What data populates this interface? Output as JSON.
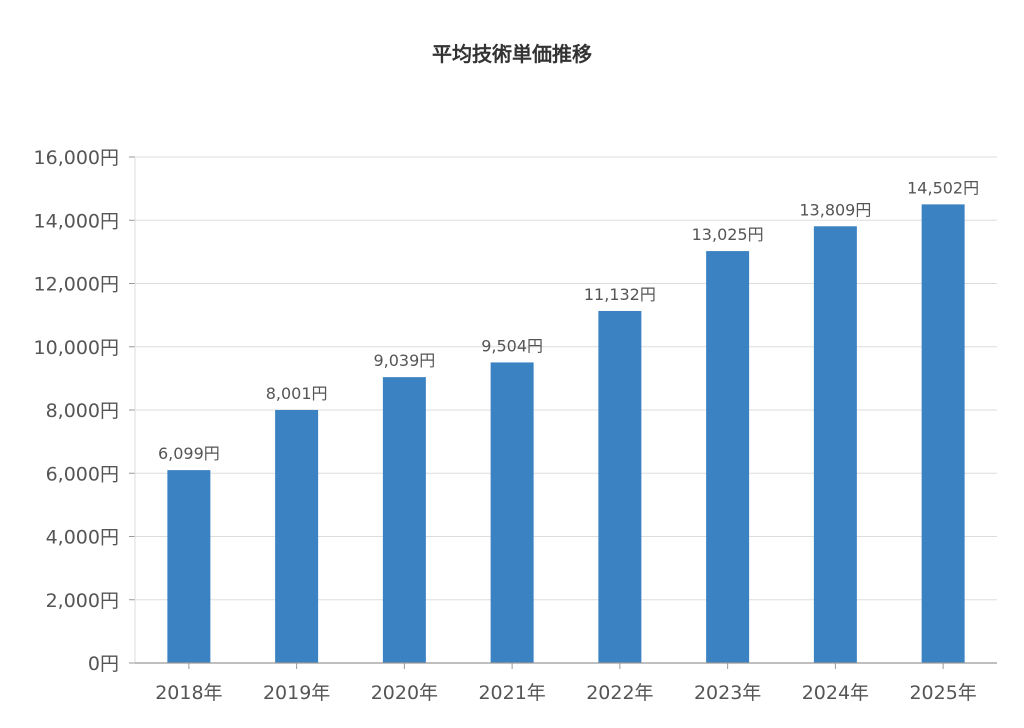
{
  "chart_data": {
    "type": "bar",
    "title": "平均技術単価推移",
    "xlabel": "",
    "ylabel": "",
    "categories": [
      "2018年",
      "2019年",
      "2020年",
      "2021年",
      "2022年",
      "2023年",
      "2024年",
      "2025年"
    ],
    "values": [
      6099,
      8001,
      9039,
      9504,
      11132,
      13025,
      13809,
      14502
    ],
    "value_labels": [
      "6,099円",
      "8,001円",
      "9,039円",
      "9,504円",
      "11,132円",
      "13,025円",
      "13,809円",
      "14,502円"
    ],
    "y_ticks": [
      0,
      2000,
      4000,
      6000,
      8000,
      10000,
      12000,
      14000,
      16000
    ],
    "y_tick_labels": [
      "0円",
      "2,000円",
      "4,000円",
      "6,000円",
      "8,000円",
      "10,000円",
      "12,000円",
      "14,000円",
      "16,000円"
    ],
    "ylim": [
      0,
      16000
    ],
    "grid": true,
    "legend": "none",
    "colors": {
      "bar": "#3b82c2",
      "grid": "#dddddd",
      "axis": "#999999",
      "text": "#555555",
      "title": "#333333"
    }
  }
}
